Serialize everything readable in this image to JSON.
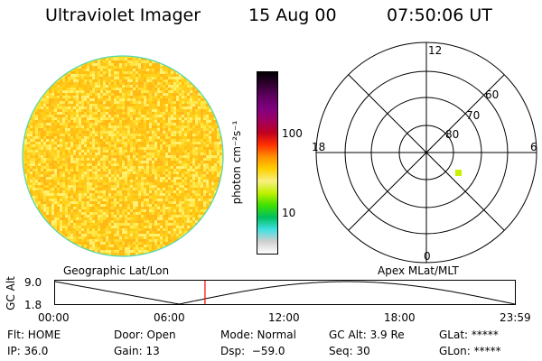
{
  "header": {
    "title": "Ultraviolet Imager",
    "date": "15 Aug 00",
    "time": "07:50:06 UT"
  },
  "colorbar": {
    "label": "photon cm⁻²s⁻¹",
    "ticks": [
      "100",
      "10"
    ],
    "colors": [
      "#ffffff",
      "#d0d0d0",
      "#40e0e0",
      "#00c060",
      "#40e000",
      "#c0f000",
      "#f8f080",
      "#ffd000",
      "#ff9000",
      "#ff3000",
      "#c00020",
      "#a00060",
      "#800080",
      "#600060",
      "#300030",
      "#000000"
    ]
  },
  "polar": {
    "mlt_labels": [
      "12",
      "18",
      "6",
      "0"
    ],
    "lat_labels": [
      "60",
      "70",
      "80"
    ],
    "marker_color": "#c8f000"
  },
  "mapping": {
    "left": "Geographic Lat/Lon",
    "right": "Apex MLat/MLT"
  },
  "altitude_plot": {
    "ylabel": "GC Alt",
    "ymax": "9.0",
    "ymin": "1.8",
    "xticks": [
      "00:00",
      "06:00",
      "12:00",
      "18:00",
      "23:59"
    ],
    "current_time_fraction": 0.326,
    "line_color": "#ff0000"
  },
  "status": {
    "flt": "Flt: HOME",
    "ip": "IP: 36.0",
    "door": "Door: Open",
    "gain": "Gain: 13",
    "mode": "Mode: Normal",
    "dsp": "Dsp:  −59.0",
    "gcalt": "GC Alt: 3.9 Re",
    "seq": "Seq: 30",
    "glat": "GLat: *****",
    "glon": "GLon: *****"
  },
  "earth_disk": {
    "base_color": "#ffe020",
    "edge_color": "#50d8b0"
  }
}
